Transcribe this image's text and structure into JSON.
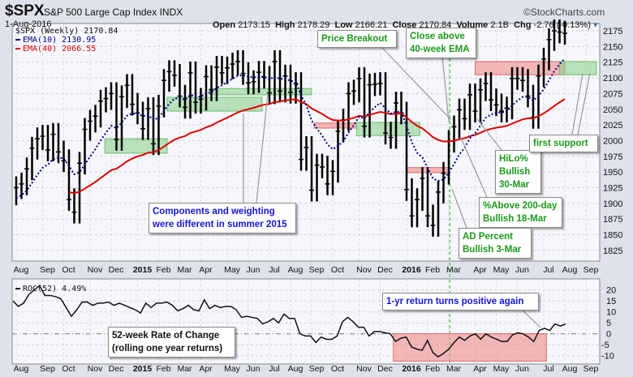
{
  "header": {
    "symbol": "$SPX",
    "name": "S&P 500 Large Cap Index",
    "exchange": "INDX",
    "copyright": "©StockCharts.com",
    "date": "1-Aug-2016",
    "open_label": "Open",
    "open": "2173.15",
    "high_label": "High",
    "high": "2178.29",
    "low_label": "Low",
    "low": "2166.21",
    "close_label": "Close",
    "close": "2170.84",
    "volume_label": "Volume",
    "volume": "2.1B",
    "chg_label": "Chg",
    "chg": "-2.76 (-0.13%)"
  },
  "legend": {
    "price": "$SPX (Weekly) 2170.84",
    "ema10": "EMA(10) 2130.95",
    "ema40": "EMA(40) 2066.55",
    "roc": "ROC(52) 4.49%"
  },
  "colors": {
    "ema10": "#00008b",
    "ema40": "#e00000",
    "green_box": "#8fd18f",
    "red_box": "#f08a8a",
    "marker": "#66cc66"
  },
  "annotations": {
    "components": "Components and weighting\nwere different in summer 2015",
    "price_breakout": "Price Breakout",
    "close_above": "Close above\n40-week EMA",
    "hilo": "HiLo%\nBullish\n30-Mar",
    "above200": "%Above 200-day\nBullish 18-Mar",
    "ad_percent": "AD Percent\nBullish 3-Mar",
    "first_support": "first support",
    "roc_desc": "52-week Rate of Change\n(rolling one year returns)",
    "roc_positive": "1-yr return turns positive again"
  },
  "chart_data": [
    {
      "type": "ohlc",
      "title": "$SPX (Weekly)",
      "ylim": [
        1810,
        2190
      ],
      "yticks": [
        1825,
        1850,
        1875,
        1900,
        1925,
        1950,
        1975,
        2000,
        2025,
        2050,
        2075,
        2100,
        2125,
        2150,
        2175
      ],
      "months": [
        {
          "label": "Aug",
          "week": 0
        },
        {
          "label": "Sep",
          "week": 5
        },
        {
          "label": "Oct",
          "week": 9
        },
        {
          "label": "Nov",
          "week": 14
        },
        {
          "label": "Dec",
          "week": 18
        },
        {
          "label": "2015",
          "week": 23,
          "bold": true
        },
        {
          "label": "Feb",
          "week": 27
        },
        {
          "label": "Mar",
          "week": 31
        },
        {
          "label": "Apr",
          "week": 35
        },
        {
          "label": "May",
          "week": 40
        },
        {
          "label": "Jun",
          "week": 44
        },
        {
          "label": "Jul",
          "week": 48
        },
        {
          "label": "Aug",
          "week": 52
        },
        {
          "label": "Sep",
          "week": 56
        },
        {
          "label": "Oct",
          "week": 60
        },
        {
          "label": "Nov",
          "week": 65
        },
        {
          "label": "Dec",
          "week": 69
        },
        {
          "label": "2016",
          "week": 74,
          "bold": true
        },
        {
          "label": "Feb",
          "week": 78
        },
        {
          "label": "Mar",
          "week": 82
        },
        {
          "label": "Apr",
          "week": 87
        },
        {
          "label": "May",
          "week": 91
        },
        {
          "label": "Jun",
          "week": 95
        },
        {
          "label": "Jul",
          "week": 100
        },
        {
          "label": "Aug",
          "week": 104
        },
        {
          "label": "Sep",
          "week": 108
        }
      ],
      "close": [
        1925,
        1931,
        1955,
        1988,
        2003,
        2007,
        1985,
        2010,
        1982,
        1968,
        1906,
        1886,
        1964,
        2018,
        2031,
        2039,
        2063,
        2067,
        2075,
        2002,
        2070,
        2088,
        2058,
        2044,
        2019,
        2051,
        1995,
        2055,
        2096,
        2110,
        2104,
        2071,
        2053,
        2108,
        2061,
        2066,
        2102,
        2081,
        2117,
        2108,
        2116,
        2122,
        2126,
        2107,
        2092,
        2094,
        2109,
        2101,
        2076,
        2126,
        2079,
        2103,
        2077,
        2091,
        1970,
        1989,
        1921,
        1961,
        1958,
        1931,
        1951,
        2015,
        2033,
        2075,
        2079,
        2099,
        2023,
        2089,
        2090,
        2091,
        2012,
        2005,
        2060,
        2044,
        1922,
        1880,
        1906,
        1940,
        1880,
        1865,
        1918,
        1948,
        1999,
        2022,
        2049,
        2035,
        2073,
        2047,
        2081,
        2091,
        2065,
        2057,
        2047,
        2052,
        2099,
        2099,
        2096,
        2071,
        2037,
        2103,
        2130,
        2161,
        2175,
        2173,
        2171
      ],
      "series": [
        {
          "name": "EMA(10)",
          "period": 10
        },
        {
          "name": "EMA(40)",
          "period": 40
        }
      ],
      "zones": [
        {
          "kind": "green",
          "weeks": [
            16.8,
            28.6
          ],
          "price": [
            1980,
            2003
          ]
        },
        {
          "kind": "green",
          "weeks": [
            28.6,
            46.6
          ],
          "price": [
            2047,
            2069
          ]
        },
        {
          "kind": "green",
          "weeks": [
            36.6,
            56
          ],
          "price": [
            2073,
            2083
          ]
        },
        {
          "kind": "red",
          "weeks": [
            56.5,
            64.5
          ],
          "price": [
            2020,
            2028
          ]
        },
        {
          "kind": "green",
          "weeks": [
            64.5,
            76.5
          ],
          "price": [
            2008,
            2029
          ]
        },
        {
          "kind": "red",
          "weeks": [
            74,
            82
          ],
          "price": [
            1949,
            1957
          ]
        },
        {
          "kind": "red",
          "weeks": [
            87,
            104
          ],
          "price": [
            2105,
            2126
          ]
        },
        {
          "kind": "green",
          "weeks": [
            103,
            110
          ],
          "price": [
            2105,
            2126
          ]
        }
      ],
      "marker_week": 82.2
    },
    {
      "type": "line",
      "title": "ROC(52)",
      "ylim": [
        -13,
        23
      ],
      "yticks": [
        -10,
        -5,
        0,
        5,
        10,
        15,
        20
      ],
      "values": [
        15,
        12.5,
        14,
        18,
        20,
        22,
        17.5,
        17.5,
        17,
        16,
        12,
        8,
        11,
        14.5,
        14.5,
        13,
        14,
        14,
        14.5,
        13,
        14,
        13,
        12,
        11,
        9.5,
        14,
        12,
        14,
        14,
        14.5,
        13,
        10.5,
        11.5,
        13,
        11,
        10.5,
        15.5,
        11.5,
        13,
        12,
        12.5,
        12.5,
        11,
        7.5,
        8,
        7.5,
        7,
        4.5,
        5.5,
        7,
        5,
        9,
        7,
        7,
        0,
        -1,
        -1,
        -4,
        -1.5,
        -2.5,
        -2.5,
        -1,
        5.5,
        7.5,
        5.5,
        3,
        3,
        -1,
        1,
        1,
        0.5,
        0,
        -3.5,
        -2,
        -1.5,
        -6,
        -7,
        -7.5,
        -3,
        -8.5,
        -10.5,
        -9,
        -7,
        -4,
        -1.5,
        -3,
        -1,
        0,
        -2.5,
        0,
        -1.5,
        -2.5,
        -3.5,
        -3.5,
        -0.5,
        0.5,
        0,
        -1.5,
        -3.5,
        1.5,
        2.5,
        1.5,
        4.5,
        3.5,
        4.49
      ],
      "zone": {
        "weeks": [
          71.5,
          100.5
        ],
        "value": [
          -12.5,
          0
        ]
      }
    }
  ]
}
